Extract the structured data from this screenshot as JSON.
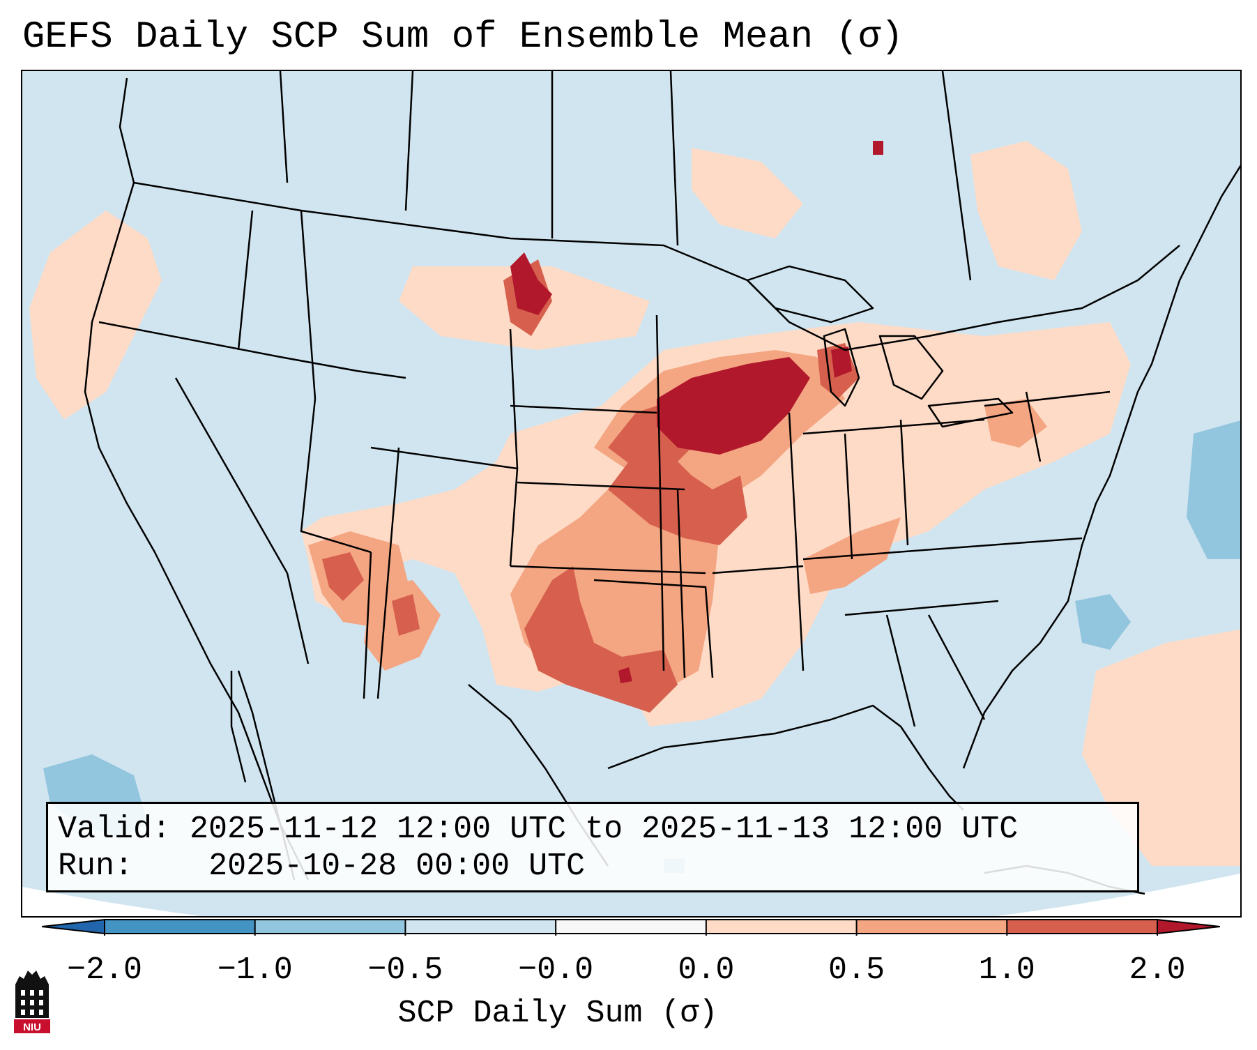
{
  "title": "GEFS Daily SCP Sum of Ensemble Mean (σ)",
  "info": {
    "valid_label": "Valid:",
    "valid_value": "2025-11-12 12:00 UTC to 2025-11-13 12:00 UTC",
    "run_label": "Run:",
    "run_value": "2025-10-28 00:00 UTC"
  },
  "colorbar": {
    "label": "SCP Daily Sum (σ)",
    "ticks": [
      "−2.0",
      "−1.0",
      "−0.5",
      "−0.0",
      "0.0",
      "0.5",
      "1.0",
      "2.0"
    ],
    "bins": [
      {
        "from": -2.0,
        "to": -1.0,
        "color": "#4393c3"
      },
      {
        "from": -1.0,
        "to": -0.5,
        "color": "#92c5de"
      },
      {
        "from": -0.5,
        "to": -0.0,
        "color": "#d1e5f0"
      },
      {
        "from": -0.0,
        "to": 0.0,
        "color": "#f7f7f7"
      },
      {
        "from": 0.0,
        "to": 0.5,
        "color": "#fddbc7"
      },
      {
        "from": 0.5,
        "to": 1.0,
        "color": "#f4a582"
      },
      {
        "from": 1.0,
        "to": 2.0,
        "color": "#d6604d"
      }
    ],
    "under_color": "#2166ac",
    "over_color": "#b2182b"
  },
  "map_colors": {
    "background": "#d1e5f0",
    "outside_domain": "#ffffff",
    "positive_low": "#fddbc7",
    "positive_mid": "#f4a582",
    "positive_high": "#d6604d",
    "positive_max": "#b2182b",
    "negative": "#92c5de",
    "boundaries": "#000000"
  },
  "logo": {
    "text": "NIU",
    "color": "#c8102e"
  }
}
